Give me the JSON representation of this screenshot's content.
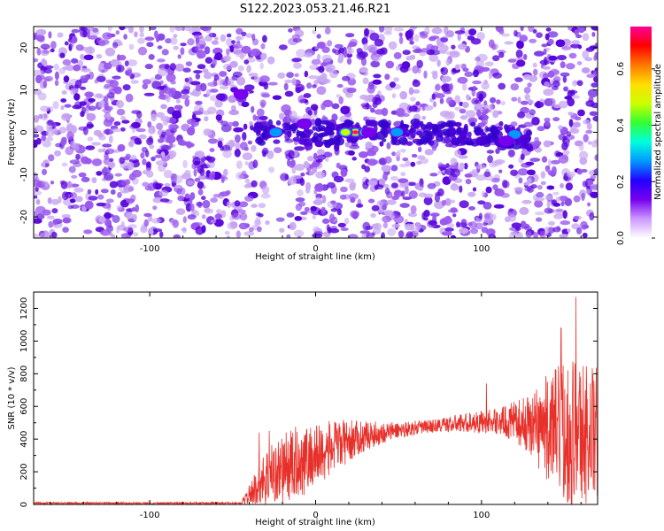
{
  "title": "S122.2023.053.21.46.R21",
  "colors": {
    "signal": "#e8302a",
    "scatter_dark": "#5500dd",
    "scatter_mid": "#9955ee",
    "scatter_light": "#c9a8f2"
  },
  "chart_data": [
    {
      "type": "heatmap",
      "xlabel": "Height of straight line (km)",
      "ylabel": "Frequency (Hz)",
      "xlim": [
        -170,
        170
      ],
      "ylim": [
        -25,
        25
      ],
      "xticks": [
        -100,
        0,
        100
      ],
      "yticks": [
        -20,
        -10,
        0,
        10,
        20
      ],
      "colorbar": {
        "label": "Normalized spectral amplitude",
        "range": [
          0,
          0.75
        ],
        "ticks": [
          "0.0",
          "0.2",
          "0.4",
          "0.6"
        ],
        "colors": [
          "#ffffff",
          "#cc99ff",
          "#7700ee",
          "#2200ff",
          "#0099ff",
          "#00ffdd",
          "#33ff33",
          "#ccff00",
          "#ffdd00",
          "#ff7700",
          "#ff0000",
          "#ff0099"
        ]
      },
      "hotspots": [
        {
          "x": 24,
          "y": 0,
          "amp": 0.75
        },
        {
          "x": 18,
          "y": 0,
          "amp": 0.5
        },
        {
          "x": 30,
          "y": 0,
          "amp": 0.45
        },
        {
          "x": 49,
          "y": 0,
          "amp": 0.3
        },
        {
          "x": -24,
          "y": 0,
          "amp": 0.3
        },
        {
          "x": -7,
          "y": 2,
          "amp": 0.25
        },
        {
          "x": 32,
          "y": 0,
          "amp": 0.25
        },
        {
          "x": 120,
          "y": -0.5,
          "amp": 0.35
        },
        {
          "x": 115,
          "y": -2,
          "amp": 0.25
        },
        {
          "x": -45,
          "y": 9,
          "amp": 0.2
        }
      ],
      "gap_bands": [
        [
          -30,
          -18
        ],
        [
          24,
          28
        ],
        [
          112,
          118
        ]
      ]
    },
    {
      "type": "line",
      "xlabel": "Height of straight line (km)",
      "ylabel": "SNR (10 * v/v)",
      "xlim": [
        -170,
        170
      ],
      "ylim": [
        0,
        1300
      ],
      "xticks": [
        -100,
        0,
        100
      ],
      "yticks": [
        0,
        200,
        400,
        600,
        800,
        1000,
        1200
      ],
      "envelope": [
        {
          "x": -170,
          "mean": 8,
          "amp": 6
        },
        {
          "x": -45,
          "mean": 8,
          "amp": 6
        },
        {
          "x": -40,
          "mean": 60,
          "amp": 60
        },
        {
          "x": -30,
          "mean": 170,
          "amp": 180
        },
        {
          "x": -15,
          "mean": 240,
          "amp": 230
        },
        {
          "x": 0,
          "mean": 300,
          "amp": 200
        },
        {
          "x": 15,
          "mean": 370,
          "amp": 150
        },
        {
          "x": 30,
          "mean": 420,
          "amp": 90
        },
        {
          "x": 50,
          "mean": 455,
          "amp": 50
        },
        {
          "x": 70,
          "mean": 480,
          "amp": 40
        },
        {
          "x": 90,
          "mean": 500,
          "amp": 60
        },
        {
          "x": 110,
          "mean": 510,
          "amp": 80
        },
        {
          "x": 125,
          "mean": 500,
          "amp": 150
        },
        {
          "x": 140,
          "mean": 470,
          "amp": 330
        },
        {
          "x": 155,
          "mean": 450,
          "amp": 480
        },
        {
          "x": 170,
          "mean": 430,
          "amp": 420
        }
      ],
      "peaks": [
        {
          "x": 157,
          "y": 1270
        },
        {
          "x": 148,
          "y": 1080
        },
        {
          "x": 103,
          "y": 740
        },
        {
          "x": -28,
          "y": 450
        },
        {
          "x": -34,
          "y": 440
        }
      ]
    }
  ]
}
